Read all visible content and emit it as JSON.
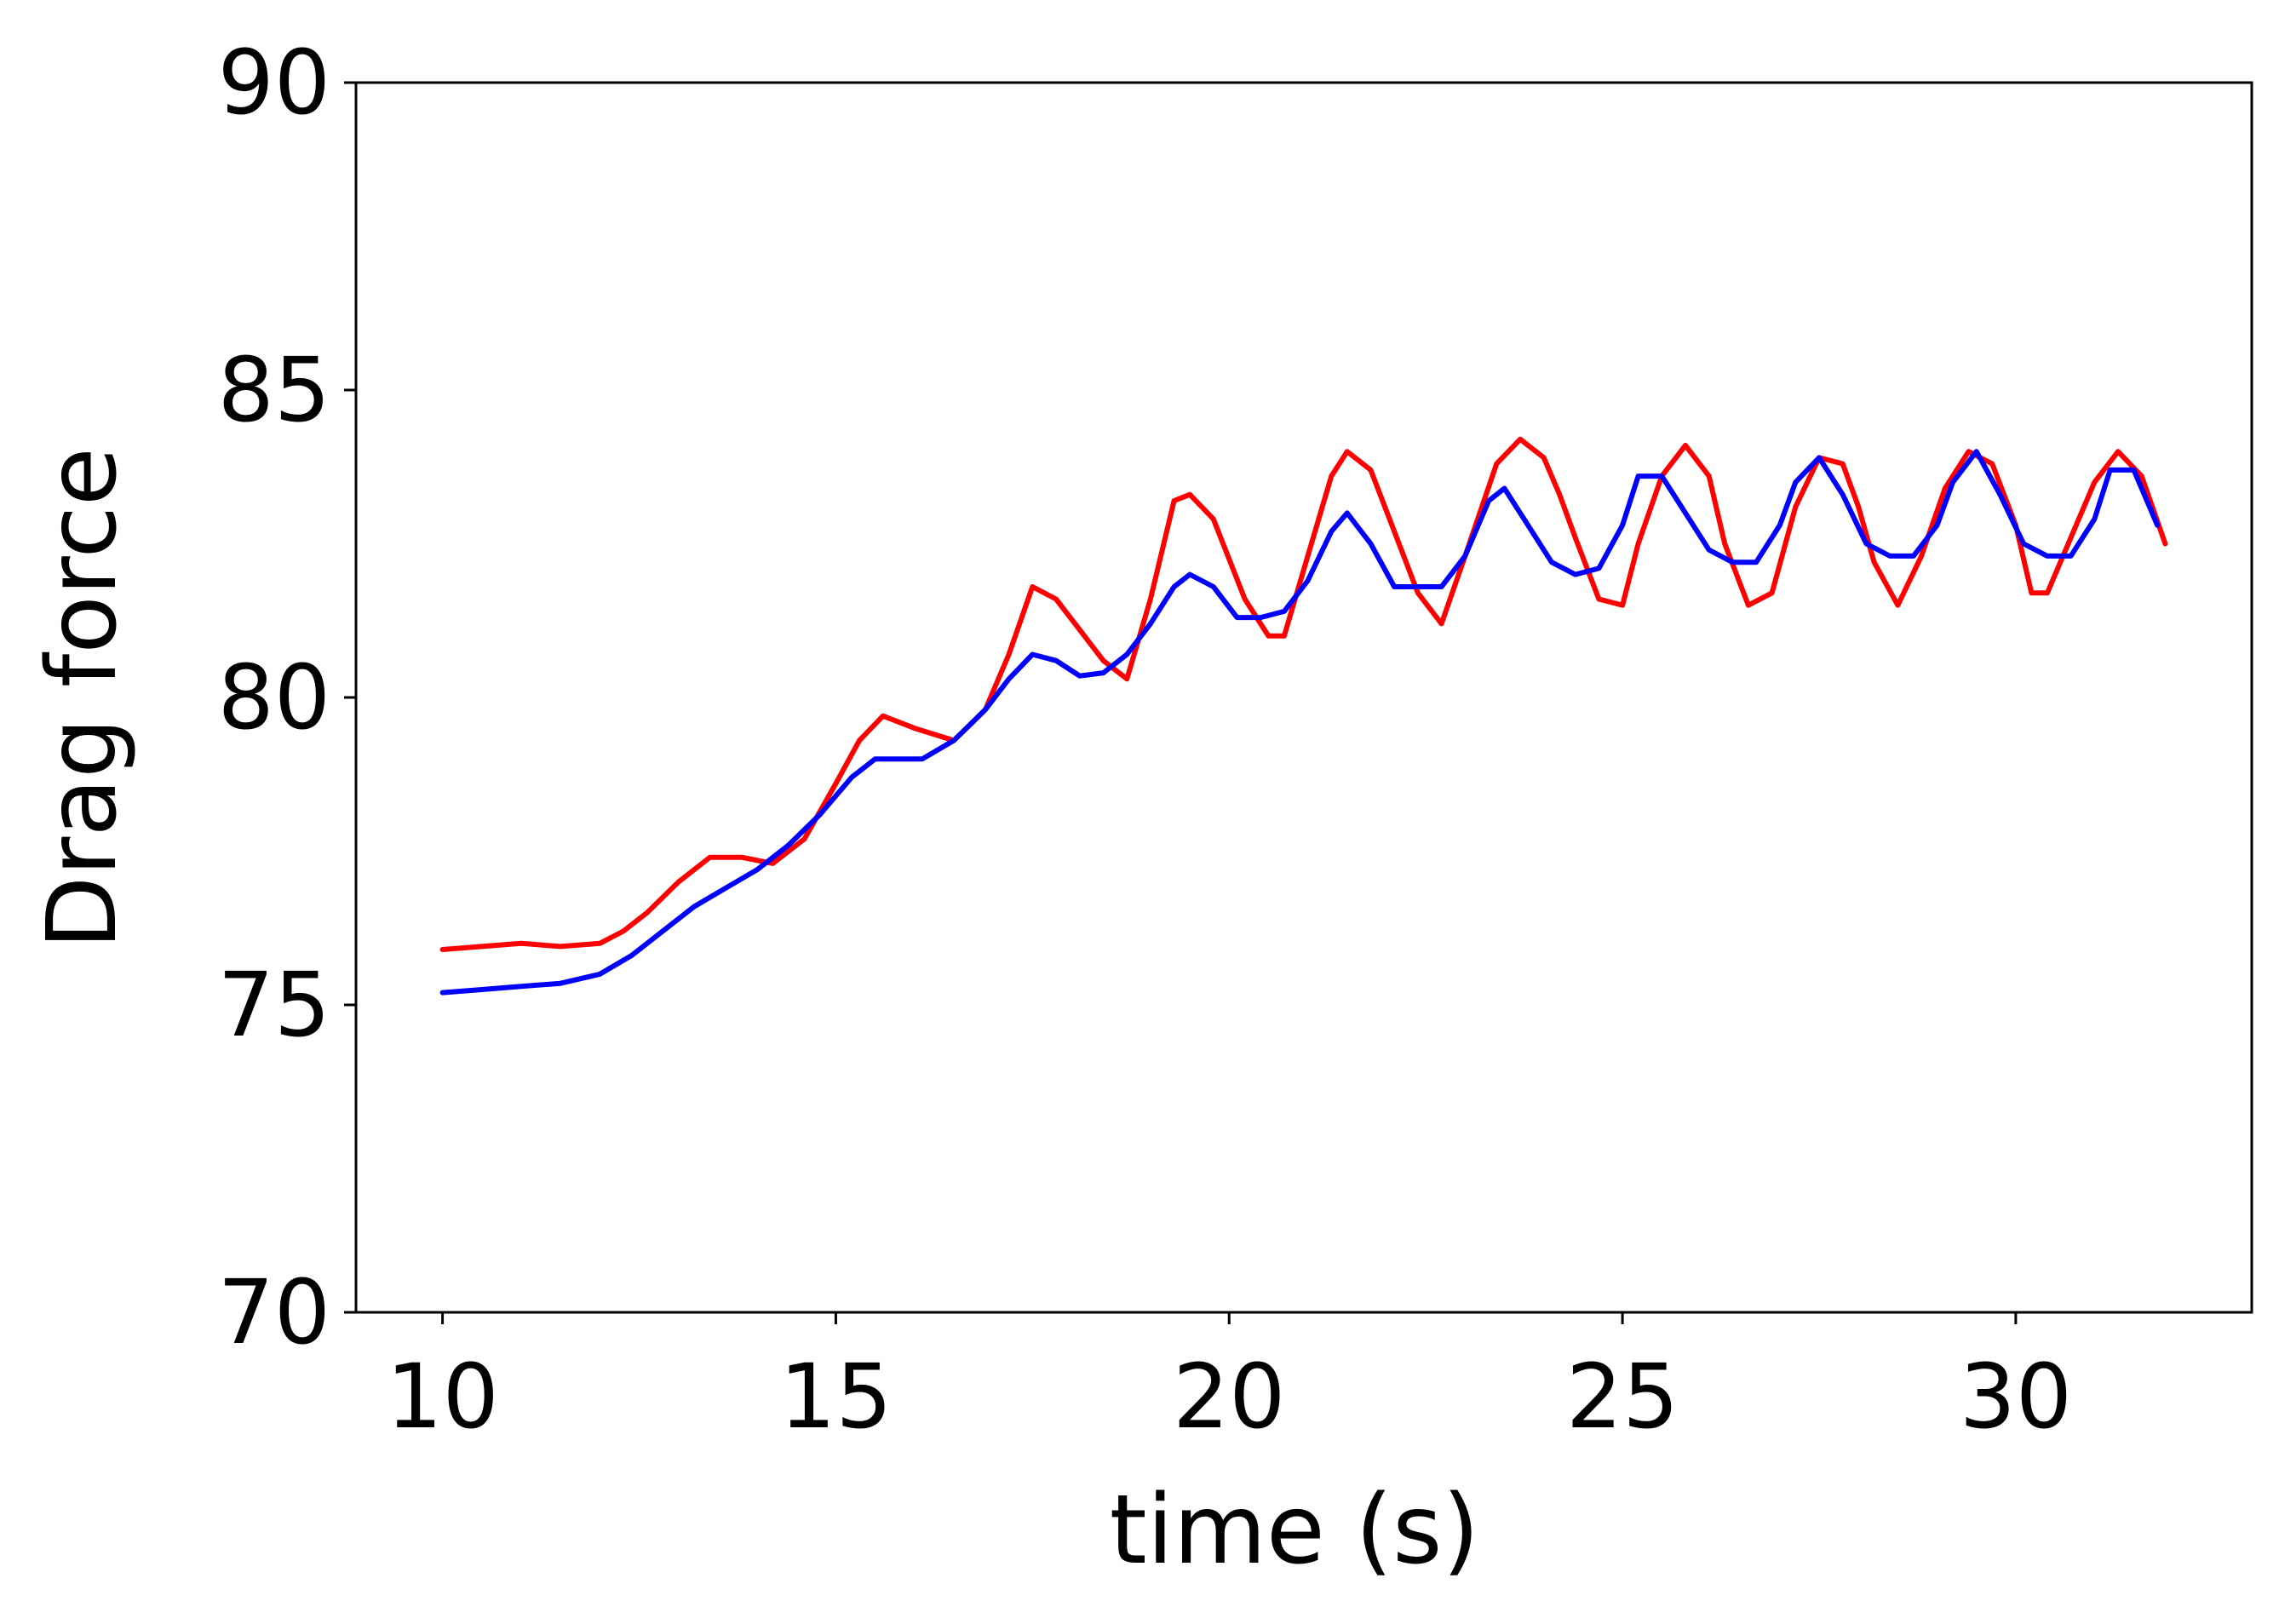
{
  "chart_data": {
    "type": "line",
    "title": "",
    "xlabel": "time (s)",
    "ylabel": "Drag force",
    "xlim": [
      8.9,
      33.0
    ],
    "ylim": [
      70,
      90
    ],
    "xticks": [
      10,
      15,
      20,
      25,
      30
    ],
    "yticks": [
      70,
      75,
      80,
      85,
      90
    ],
    "grid": false,
    "legend": "none",
    "series": [
      {
        "color": "#ff0000",
        "x": [
          10.0,
          10.5,
          11.0,
          11.5,
          12.0,
          12.3,
          12.6,
          13.0,
          13.4,
          13.8,
          14.2,
          14.6,
          15.0,
          15.3,
          15.6,
          16.0,
          16.5,
          16.9,
          17.2,
          17.5,
          17.8,
          18.1,
          18.4,
          18.7,
          19.0,
          19.3,
          19.5,
          19.8,
          20.2,
          20.5,
          20.7,
          21.0,
          21.3,
          21.5,
          21.8,
          22.1,
          22.4,
          22.7,
          23.0,
          23.4,
          23.7,
          24.0,
          24.2,
          24.4,
          24.7,
          25.0,
          25.2,
          25.5,
          25.8,
          26.1,
          26.3,
          26.6,
          26.9,
          27.2,
          27.5,
          27.8,
          28.0,
          28.2,
          28.5,
          28.8,
          29.1,
          29.4,
          29.7,
          30.0,
          30.2,
          30.4,
          30.7,
          31.0,
          31.3,
          31.6,
          31.9
        ],
        "y": [
          75.9,
          75.95,
          76.0,
          75.95,
          76.0,
          76.2,
          76.5,
          77.0,
          77.4,
          77.4,
          77.3,
          77.7,
          78.6,
          79.3,
          79.7,
          79.5,
          79.3,
          79.8,
          80.7,
          81.8,
          81.6,
          81.1,
          80.6,
          80.3,
          81.6,
          83.2,
          83.3,
          82.9,
          81.6,
          81.0,
          81.0,
          82.3,
          83.6,
          84.0,
          83.7,
          82.7,
          81.7,
          81.2,
          82.3,
          83.8,
          84.2,
          83.9,
          83.3,
          82.6,
          81.6,
          81.5,
          82.5,
          83.6,
          84.1,
          83.6,
          82.5,
          81.5,
          81.7,
          83.1,
          83.9,
          83.8,
          83.1,
          82.2,
          81.5,
          82.3,
          83.4,
          84.0,
          83.8,
          82.8,
          81.7,
          81.7,
          82.6,
          83.5,
          84.0,
          83.6,
          82.5
        ]
      },
      {
        "color": "#0000ff",
        "x": [
          10.0,
          10.5,
          11.0,
          11.5,
          12.0,
          12.4,
          12.8,
          13.2,
          13.6,
          14.0,
          14.4,
          14.8,
          15.2,
          15.5,
          15.8,
          16.1,
          16.5,
          16.9,
          17.2,
          17.5,
          17.8,
          18.1,
          18.4,
          18.7,
          19.0,
          19.3,
          19.5,
          19.8,
          20.1,
          20.4,
          20.7,
          21.0,
          21.3,
          21.5,
          21.8,
          22.1,
          22.4,
          22.7,
          23.0,
          23.3,
          23.5,
          23.8,
          24.1,
          24.4,
          24.7,
          25.0,
          25.2,
          25.5,
          25.8,
          26.1,
          26.4,
          26.7,
          27.0,
          27.2,
          27.5,
          27.8,
          28.1,
          28.4,
          28.7,
          29.0,
          29.2,
          29.5,
          29.8,
          30.1,
          30.4,
          30.7,
          31.0,
          31.2,
          31.5,
          31.8
        ],
        "y": [
          75.2,
          75.25,
          75.3,
          75.35,
          75.5,
          75.8,
          76.2,
          76.6,
          76.9,
          77.2,
          77.6,
          78.1,
          78.7,
          79.0,
          79.0,
          79.0,
          79.3,
          79.8,
          80.3,
          80.7,
          80.6,
          80.35,
          80.4,
          80.7,
          81.2,
          81.8,
          82.0,
          81.8,
          81.3,
          81.3,
          81.4,
          81.9,
          82.7,
          83.0,
          82.5,
          81.8,
          81.8,
          81.8,
          82.3,
          83.2,
          83.4,
          82.8,
          82.2,
          82.0,
          82.1,
          82.8,
          83.6,
          83.6,
          83.0,
          82.4,
          82.2,
          82.2,
          82.8,
          83.5,
          83.9,
          83.3,
          82.5,
          82.3,
          82.3,
          82.8,
          83.5,
          84.0,
          83.3,
          82.5,
          82.3,
          82.3,
          82.9,
          83.7,
          83.7,
          82.8
        ]
      }
    ]
  }
}
